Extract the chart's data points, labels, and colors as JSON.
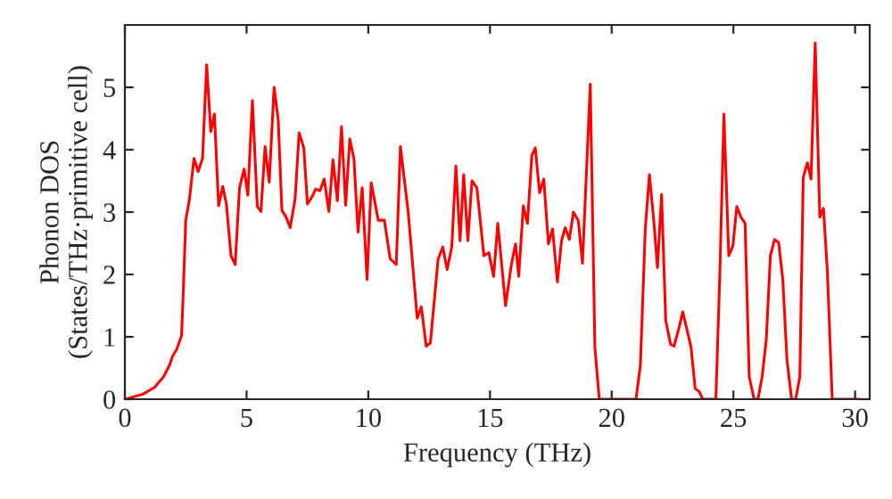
{
  "chart_data": {
    "type": "line",
    "xlabel": "Frequency (THz)",
    "ylabel": "Phonon DOS\n(States/THz·primitive cell)",
    "xlim": [
      0,
      30.6
    ],
    "ylim": [
      0,
      6
    ],
    "xticks": [
      0,
      5,
      10,
      15,
      20,
      25,
      30
    ],
    "yticks": [
      0,
      1,
      2,
      3,
      4,
      5
    ],
    "grid": false,
    "legend": false,
    "marker": "none",
    "line_style": "solid",
    "series": [
      {
        "color": "#ff0000",
        "x": [
          0,
          0.74,
          1.22,
          1.59,
          1.84,
          1.96,
          2.13,
          2.33,
          2.4,
          2.5,
          2.65,
          2.84,
          3.01,
          3.19,
          3.36,
          3.53,
          3.68,
          3.85,
          4.02,
          4.17,
          4.36,
          4.53,
          4.71,
          4.9,
          5.05,
          5.24,
          5.44,
          5.59,
          5.76,
          5.93,
          6.13,
          6.3,
          6.45,
          6.62,
          6.79,
          6.99,
          7.16,
          7.35,
          7.5,
          7.7,
          7.84,
          8.01,
          8.19,
          8.38,
          8.55,
          8.73,
          8.9,
          9.07,
          9.24,
          9.41,
          9.58,
          9.75,
          9.95,
          10.12,
          10.41,
          10.66,
          10.9,
          11.15,
          11.32,
          11.64,
          12.01,
          12.18,
          12.38,
          12.55,
          12.87,
          13.06,
          13.24,
          13.43,
          13.6,
          13.77,
          13.92,
          14.09,
          14.26,
          14.46,
          14.75,
          14.95,
          15.15,
          15.32,
          15.64,
          15.88,
          16.05,
          16.18,
          16.37,
          16.54,
          16.72,
          16.86,
          17.04,
          17.21,
          17.4,
          17.57,
          17.77,
          17.94,
          18.09,
          18.26,
          18.43,
          18.63,
          18.8,
          19.12,
          19.31,
          19.49,
          21.0,
          21.18,
          21.38,
          21.55,
          21.74,
          21.88,
          22.05,
          22.22,
          22.42,
          22.56,
          22.75,
          22.92,
          23.09,
          23.26,
          23.43,
          23.6,
          23.74,
          24.28,
          24.44,
          24.61,
          24.81,
          24.98,
          25.14,
          25.31,
          25.48,
          25.65,
          25.85,
          26.01,
          26.18,
          26.35,
          26.52,
          26.69,
          26.86,
          27.03,
          27.2,
          27.39,
          27.56,
          27.73,
          27.87,
          28.04,
          28.19,
          28.36,
          28.55,
          28.7,
          28.86,
          29.06,
          30.2
        ],
        "values": [
          0,
          0.08,
          0.19,
          0.36,
          0.55,
          0.69,
          0.8,
          1.02,
          1.73,
          2.87,
          3.2,
          3.86,
          3.65,
          3.86,
          5.36,
          4.29,
          4.57,
          3.1,
          3.41,
          3.13,
          2.3,
          2.16,
          3.39,
          3.69,
          3.27,
          4.79,
          3.09,
          3.01,
          4.05,
          3.48,
          5.0,
          4.48,
          3.03,
          2.92,
          2.75,
          3.2,
          4.27,
          4.03,
          3.13,
          3.25,
          3.37,
          3.34,
          3.53,
          3.01,
          3.84,
          3.18,
          4.37,
          3.11,
          4.17,
          3.86,
          2.68,
          3.39,
          1.92,
          3.47,
          2.87,
          2.87,
          2.25,
          2.16,
          4.05,
          3.0,
          1.3,
          1.48,
          0.85,
          0.9,
          2.25,
          2.44,
          2.08,
          2.44,
          3.74,
          2.54,
          3.6,
          2.54,
          3.5,
          3.39,
          2.3,
          2.35,
          1.97,
          2.82,
          1.5,
          2.16,
          2.49,
          1.97,
          3.1,
          2.82,
          3.91,
          4.03,
          3.31,
          3.53,
          2.49,
          2.73,
          1.88,
          2.54,
          2.75,
          2.56,
          3.0,
          2.86,
          2.18,
          5.05,
          0.83,
          0,
          0,
          0.55,
          2.73,
          3.6,
          2.82,
          2.11,
          3.28,
          1.26,
          0.88,
          0.85,
          1.12,
          1.4,
          1.12,
          0.83,
          0.17,
          0.12,
          0,
          0,
          1.97,
          4.57,
          2.3,
          2.46,
          3.09,
          2.92,
          2.82,
          0.36,
          0,
          0,
          0.36,
          0.95,
          2.3,
          2.56,
          2.51,
          1.92,
          0.64,
          0,
          0,
          0.36,
          3.56,
          3.79,
          3.53,
          5.71,
          2.92,
          3.06,
          2.06,
          0,
          0
        ]
      }
    ]
  }
}
